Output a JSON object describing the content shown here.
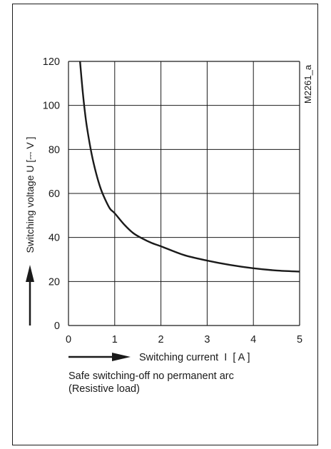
{
  "chart_data": {
    "type": "line",
    "title": "",
    "xlabel": "Switching current  I  [ A ]",
    "ylabel": "Switching voltage  U  [⎓ V ]",
    "xlim": [
      0,
      5
    ],
    "ylim": [
      0,
      120
    ],
    "x_ticks": [
      "0",
      "1",
      "2",
      "3",
      "4",
      "5"
    ],
    "y_ticks": [
      "0",
      "20",
      "40",
      "60",
      "80",
      "100",
      "120"
    ],
    "grid": true,
    "figure_id": "M2261_a",
    "caption_lines": [
      "Safe switching-off no permanent arc",
      "(Resistive load)"
    ],
    "series": [
      {
        "x": [
          0.25,
          0.3,
          0.35,
          0.4,
          0.5,
          0.6,
          0.7,
          0.8,
          0.9,
          1.0,
          1.2,
          1.4,
          1.6,
          1.8,
          2.0,
          2.5,
          3.0,
          3.5,
          4.0,
          4.5,
          5.0
        ],
        "y": [
          120,
          108,
          98,
          90,
          78,
          69,
          62,
          57,
          53,
          51,
          46,
          42,
          39.5,
          37.5,
          36,
          32,
          29.5,
          27.5,
          26,
          25,
          24.5
        ]
      }
    ],
    "colors": {
      "line": "#1a1a1a",
      "grid": "#1a1a1a"
    }
  }
}
